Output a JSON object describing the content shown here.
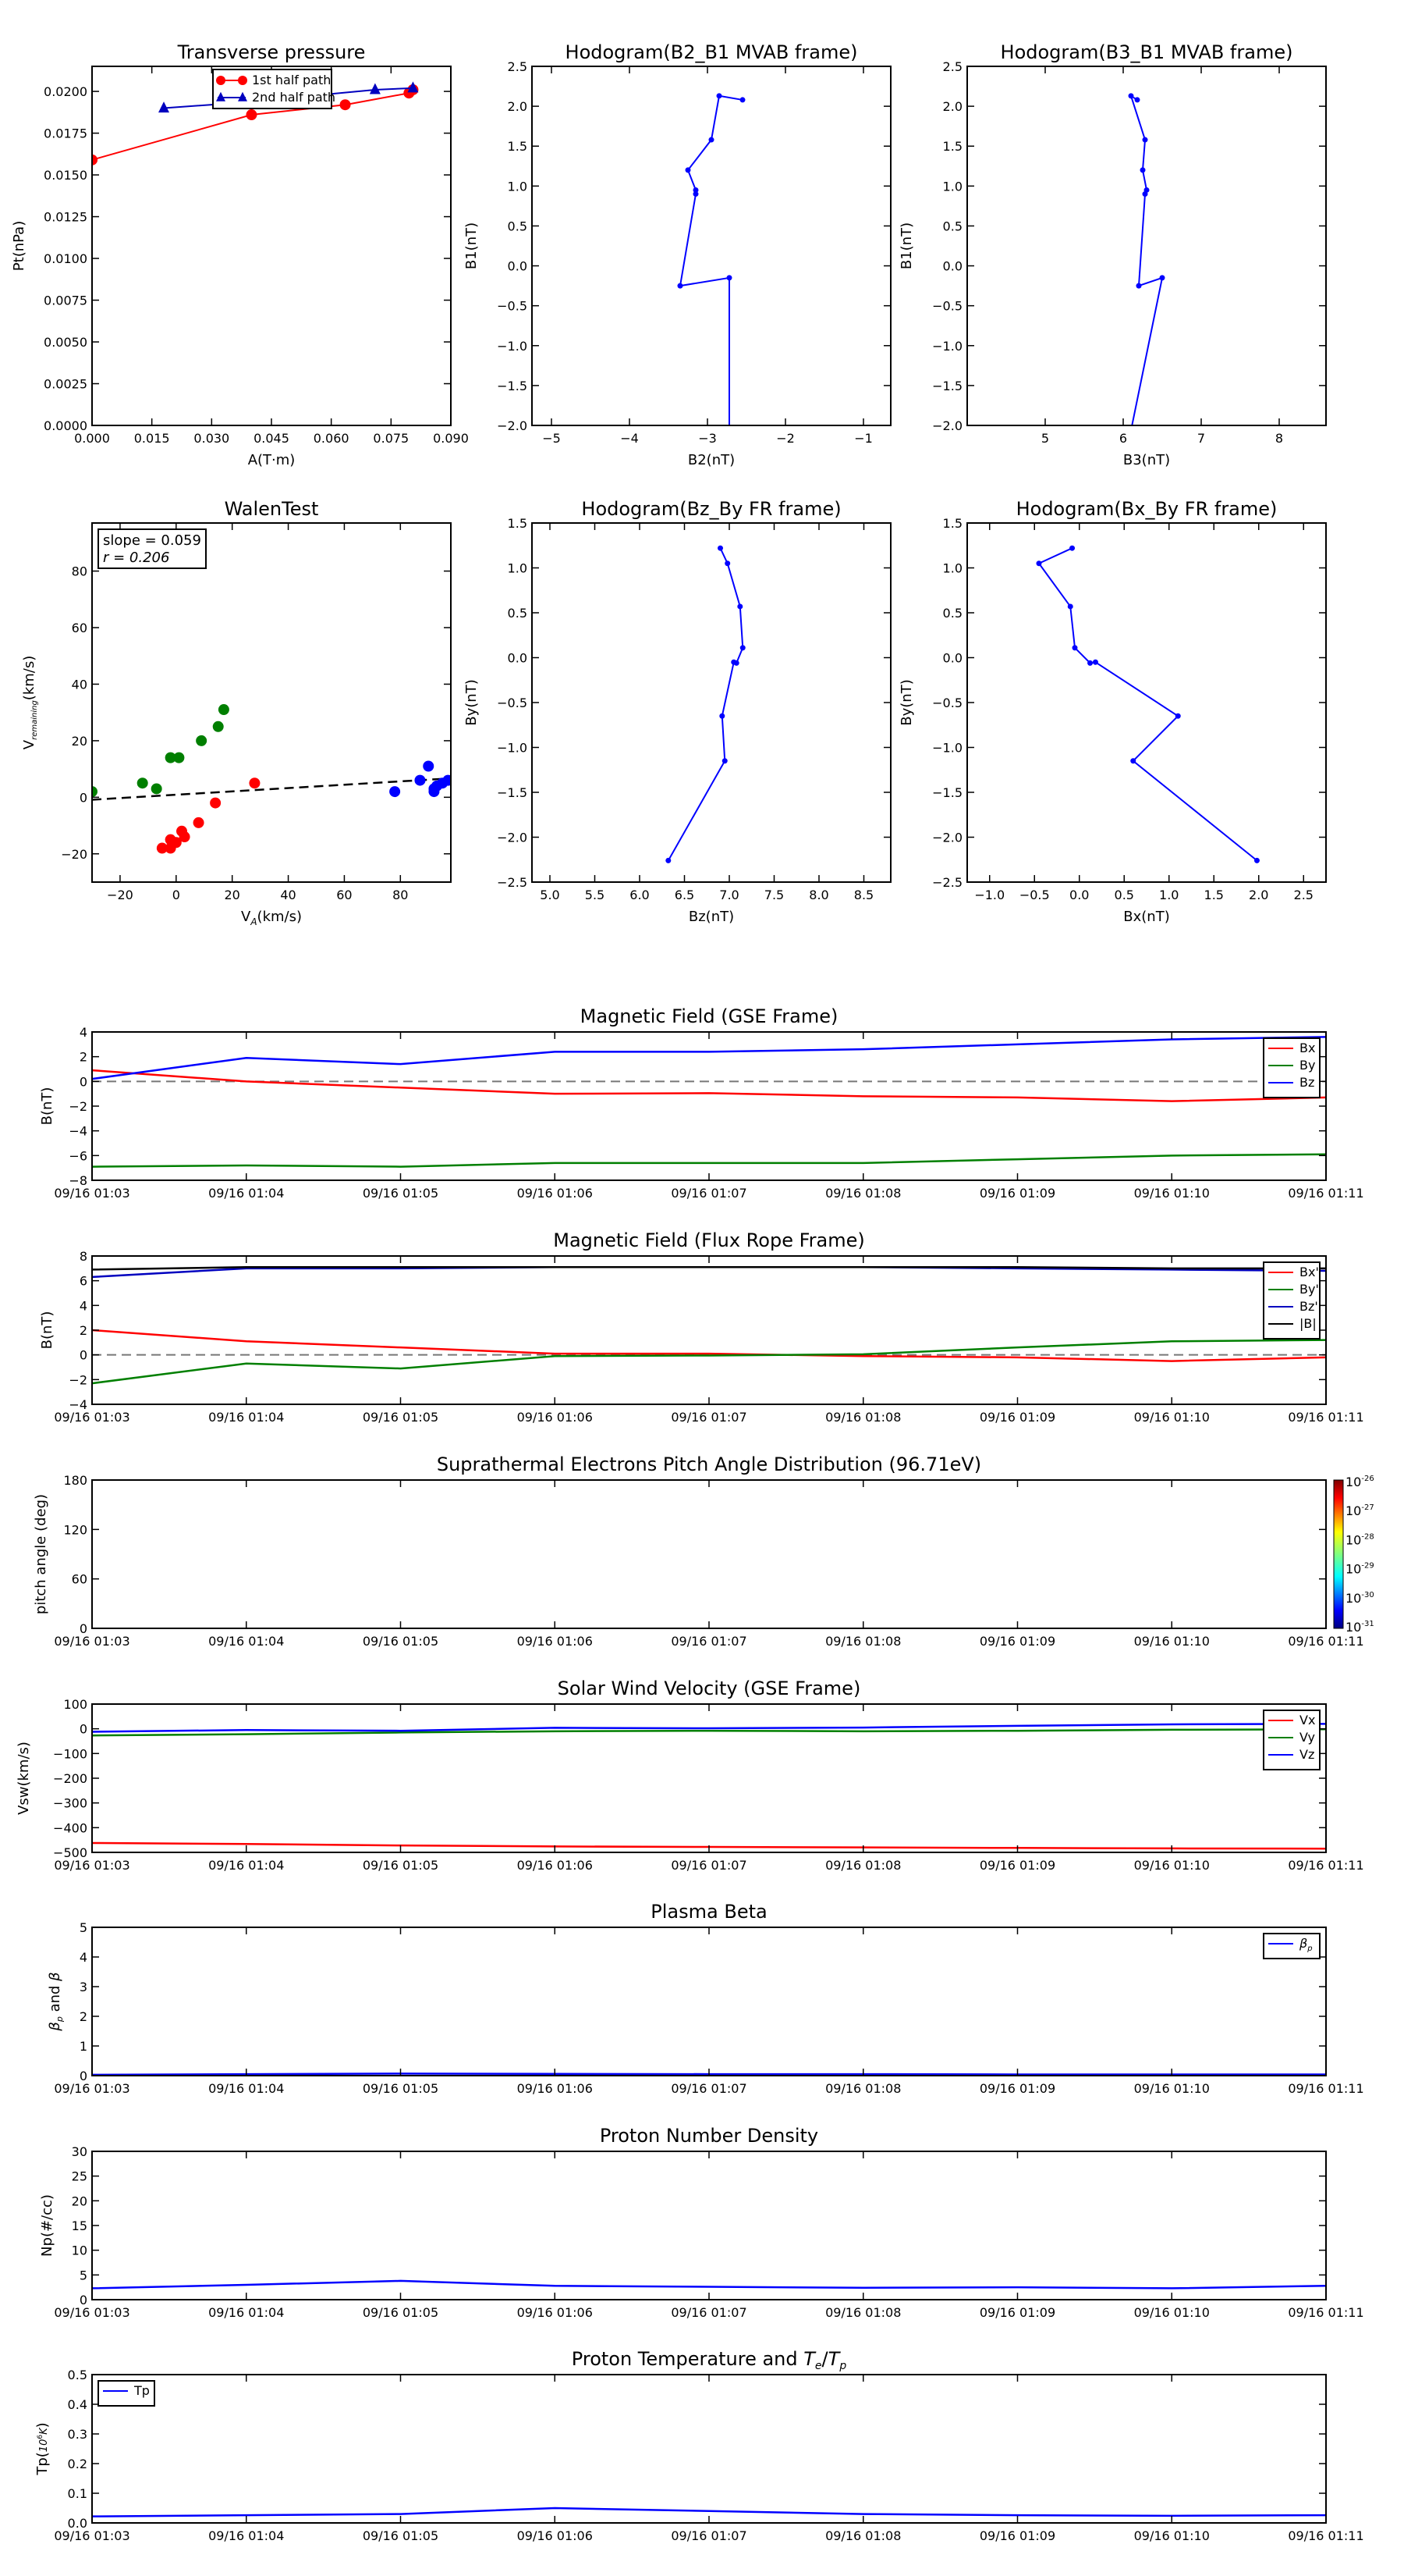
{
  "chart_data": [
    {
      "id": "transverse",
      "type": "scatter",
      "title": "Transverse pressure",
      "xlabel": "A(T·m)",
      "ylabel": "Pt(nPa)",
      "xlim": [
        0,
        0.09
      ],
      "ylim": [
        0,
        0.0215
      ],
      "xticks": [
        0,
        0.015,
        0.03,
        0.045,
        0.06,
        0.075,
        0.09
      ],
      "xtick_labels": [
        "0.000",
        "0.015",
        "0.030",
        "0.045",
        "0.060",
        "0.075",
        "0.090"
      ],
      "yticks": [
        0,
        0.0025,
        0.005,
        0.0075,
        0.01,
        0.0125,
        0.015,
        0.0175,
        0.02
      ],
      "ytick_labels": [
        "0.0000",
        "0.0025",
        "0.0050",
        "0.0075",
        "0.0100",
        "0.0125",
        "0.0150",
        "0.0175",
        "0.0200"
      ],
      "legend": {
        "position": "top-center"
      },
      "series": [
        {
          "name": "1st half path",
          "color": "#ff0000",
          "marker": "circle",
          "x": [
            0.0,
            0.04,
            0.0635,
            0.0795,
            0.0805
          ],
          "y": [
            0.0159,
            0.0186,
            0.0192,
            0.0199,
            0.0201
          ]
        },
        {
          "name": "2nd half path",
          "color": "#0000bf",
          "marker": "triangle",
          "x": [
            0.018,
            0.0355,
            0.071,
            0.0805
          ],
          "y": [
            0.019,
            0.0193,
            0.0201,
            0.0202
          ]
        }
      ]
    },
    {
      "id": "hodo_b2b1",
      "type": "line",
      "title": "Hodogram(B2_B1 MVAB frame)",
      "xlabel": "B2(nT)",
      "ylabel": "B1(nT)",
      "xlim": [
        -5.25,
        -0.65
      ],
      "ylim": [
        -2.0,
        2.5
      ],
      "xticks": [
        -5,
        -4,
        -3,
        -2,
        -1
      ],
      "xtick_labels": [
        "−5",
        "−4",
        "−3",
        "−2",
        "−1"
      ],
      "yticks": [
        -2.0,
        -1.5,
        -1.0,
        -0.5,
        0.0,
        0.5,
        1.0,
        1.5,
        2.0,
        2.5
      ],
      "ytick_labels": [
        "−2.0",
        "−1.5",
        "−1.0",
        "−0.5",
        "0.0",
        "0.5",
        "1.0",
        "1.5",
        "2.0",
        "2.5"
      ],
      "series": [
        {
          "color": "#0000ff",
          "x": [
            -2.55,
            -2.85,
            -2.95,
            -3.25,
            -3.15,
            -3.15,
            -3.35,
            -2.72,
            -2.72
          ],
          "y": [
            2.08,
            2.13,
            1.58,
            1.2,
            0.95,
            0.9,
            -0.25,
            -0.15,
            -2.3
          ]
        }
      ]
    },
    {
      "id": "hodo_b3b1",
      "type": "line",
      "title": "Hodogram(B3_B1 MVAB frame)",
      "xlabel": "B3(nT)",
      "ylabel": "B1(nT)",
      "xlim": [
        4.0,
        8.6
      ],
      "ylim": [
        -2.0,
        2.5
      ],
      "xticks": [
        5,
        6,
        7,
        8
      ],
      "xtick_labels": [
        "5",
        "6",
        "7",
        "8"
      ],
      "yticks": [
        -2.0,
        -1.5,
        -1.0,
        -0.5,
        0.0,
        0.5,
        1.0,
        1.5,
        2.0,
        2.5
      ],
      "ytick_labels": [
        "−2.0",
        "−1.5",
        "−1.0",
        "−0.5",
        "0.0",
        "0.5",
        "1.0",
        "1.5",
        "2.0",
        "2.5"
      ],
      "series": [
        {
          "color": "#0000ff",
          "x": [
            6.18,
            6.1,
            6.28,
            6.25,
            6.3,
            6.28,
            6.2,
            6.5,
            6.05
          ],
          "y": [
            2.08,
            2.13,
            1.58,
            1.2,
            0.95,
            0.9,
            -0.25,
            -0.15,
            -2.3
          ]
        }
      ]
    },
    {
      "id": "walen",
      "type": "scatter",
      "title": "WalenTest",
      "xlabel": "V_A(km/s)",
      "ylabel": "V_remaining(km/s)",
      "xlim": [
        -30,
        98
      ],
      "ylim": [
        -30,
        97
      ],
      "xticks": [
        -20,
        0,
        20,
        40,
        60,
        80
      ],
      "xtick_labels": [
        "−20",
        "0",
        "20",
        "40",
        "60",
        "80"
      ],
      "yticks": [
        -20,
        0,
        20,
        40,
        60,
        80
      ],
      "ytick_labels": [
        "−20",
        "0",
        "20",
        "40",
        "60",
        "80"
      ],
      "annotation": [
        "slope = 0.059",
        "r = 0.206"
      ],
      "fit": {
        "slope": 0.059,
        "intercept": 0.9,
        "style": "dashed"
      },
      "series": [
        {
          "color": "#ff0000",
          "x": [
            -5,
            -2,
            0,
            2,
            3,
            8,
            14,
            28,
            -2
          ],
          "y": [
            -18,
            -15,
            -16,
            -12,
            -14,
            -9,
            -2,
            5,
            -18
          ]
        },
        {
          "color": "#007f00",
          "x": [
            -30,
            -12,
            -7,
            -2,
            1,
            9,
            15,
            17
          ],
          "y": [
            2,
            5,
            3,
            14,
            14,
            20,
            25,
            31
          ]
        },
        {
          "color": "#0000ff",
          "x": [
            78,
            87,
            90,
            92,
            93,
            95,
            97,
            92
          ],
          "y": [
            2,
            6,
            11,
            3,
            4,
            5,
            6,
            2
          ]
        }
      ]
    },
    {
      "id": "hodo_bzby",
      "type": "line",
      "title": "Hodogram(Bz_By FR frame)",
      "xlabel": "Bz(nT)",
      "ylabel": "By(nT)",
      "xlim": [
        4.8,
        8.8
      ],
      "ylim": [
        -2.5,
        1.5
      ],
      "xticks": [
        5.0,
        5.5,
        6.0,
        6.5,
        7.0,
        7.5,
        8.0,
        8.5
      ],
      "xtick_labels": [
        "5.0",
        "5.5",
        "6.0",
        "6.5",
        "7.0",
        "7.5",
        "8.0",
        "8.5"
      ],
      "yticks": [
        -2.5,
        -2.0,
        -1.5,
        -1.0,
        -0.5,
        0.0,
        0.5,
        1.0,
        1.5
      ],
      "ytick_labels": [
        "−2.5",
        "−2.0",
        "−1.5",
        "−1.0",
        "−0.5",
        "0.0",
        "0.5",
        "1.0",
        "1.5"
      ],
      "series": [
        {
          "color": "#0000ff",
          "x": [
            6.9,
            6.98,
            7.12,
            7.15,
            7.08,
            7.05,
            6.92,
            6.95,
            6.32
          ],
          "y": [
            1.22,
            1.05,
            0.57,
            0.11,
            -0.06,
            -0.05,
            -0.65,
            -1.15,
            -2.26
          ]
        }
      ]
    },
    {
      "id": "hodo_bxby",
      "type": "line",
      "title": "Hodogram(Bx_By FR frame)",
      "xlabel": "Bx(nT)",
      "ylabel": "By(nT)",
      "xlim": [
        -1.25,
        2.75
      ],
      "ylim": [
        -2.5,
        1.5
      ],
      "xticks": [
        -1.0,
        -0.5,
        0.0,
        0.5,
        1.0,
        1.5,
        2.0,
        2.5
      ],
      "xtick_labels": [
        "−1.0",
        "−0.5",
        "0.0",
        "0.5",
        "1.0",
        "1.5",
        "2.0",
        "2.5"
      ],
      "yticks": [
        -2.5,
        -2.0,
        -1.5,
        -1.0,
        -0.5,
        0.0,
        0.5,
        1.0,
        1.5
      ],
      "ytick_labels": [
        "−2.5",
        "−2.0",
        "−1.5",
        "−1.0",
        "−0.5",
        "0.0",
        "0.5",
        "1.0",
        "1.5"
      ],
      "series": [
        {
          "color": "#0000ff",
          "x": [
            -0.08,
            -0.45,
            -0.1,
            -0.05,
            0.12,
            0.18,
            1.1,
            0.6,
            1.98
          ],
          "y": [
            1.22,
            1.05,
            0.57,
            0.11,
            -0.06,
            -0.05,
            -0.65,
            -1.15,
            -2.26
          ]
        }
      ]
    },
    {
      "id": "mag_gse",
      "type": "line",
      "title": "Magnetic Field (GSE Frame)",
      "ylabel": "B(nT)",
      "ylim": [
        -8,
        4
      ],
      "yticks": [
        -8,
        -6,
        -4,
        -2,
        0,
        2,
        4
      ],
      "ytick_labels": [
        "−8",
        "−6",
        "−4",
        "−2",
        "0",
        "2",
        "4"
      ],
      "zero_line": true,
      "legend": {
        "position": "top-right"
      },
      "series": [
        {
          "name": "Bx",
          "color": "#ff0000",
          "values": [
            0.9,
            0.0,
            -0.5,
            -1.0,
            -0.95,
            -1.2,
            -1.3,
            -1.6,
            -1.3
          ]
        },
        {
          "name": "By",
          "color": "#007f00",
          "values": [
            -6.9,
            -6.8,
            -6.9,
            -6.6,
            -6.6,
            -6.6,
            -6.3,
            -6.0,
            -5.9
          ]
        },
        {
          "name": "Bz",
          "color": "#0000ff",
          "values": [
            0.2,
            1.9,
            1.4,
            2.4,
            2.4,
            2.6,
            3.0,
            3.4,
            3.6
          ]
        }
      ]
    },
    {
      "id": "mag_fr",
      "type": "line",
      "title": "Magnetic Field (Flux Rope Frame)",
      "ylabel": "B(nT)",
      "ylim": [
        -4,
        8
      ],
      "yticks": [
        -4,
        -2,
        0,
        2,
        4,
        6,
        8
      ],
      "ytick_labels": [
        "−4",
        "−2",
        "0",
        "2",
        "4",
        "6",
        "8"
      ],
      "zero_line": true,
      "legend": {
        "position": "top-right"
      },
      "series": [
        {
          "name": "Bx'",
          "color": "#ff0000",
          "values": [
            2.0,
            1.1,
            0.6,
            0.1,
            0.1,
            -0.1,
            -0.2,
            -0.5,
            -0.2
          ]
        },
        {
          "name": "By'",
          "color": "#007f00",
          "values": [
            -2.3,
            -0.7,
            -1.1,
            -0.1,
            -0.05,
            0.05,
            0.6,
            1.1,
            1.2
          ]
        },
        {
          "name": "Bz'",
          "color": "#0000bf",
          "values": [
            6.3,
            7.0,
            7.0,
            7.1,
            7.1,
            7.1,
            7.0,
            6.9,
            6.8
          ]
        },
        {
          "name": "|B|",
          "color": "#000000",
          "values": [
            6.9,
            7.1,
            7.1,
            7.1,
            7.1,
            7.1,
            7.1,
            7.0,
            7.0
          ]
        }
      ]
    },
    {
      "id": "pad",
      "type": "heatmap",
      "title": "Suprathermal Electrons Pitch Angle Distribution (96.71eV)",
      "ylabel": "pitch angle (deg)",
      "ylim": [
        0,
        180
      ],
      "yticks": [
        0,
        60,
        120,
        180
      ],
      "ytick_labels": [
        "0",
        "60",
        "120",
        "180"
      ],
      "colorbar": {
        "tick_bases": [
          "10",
          "10",
          "10",
          "10",
          "10",
          "10"
        ],
        "tick_exponents": [
          "-26",
          "-27",
          "-28",
          "-29",
          "-30",
          "-31"
        ]
      },
      "series": []
    },
    {
      "id": "vsw",
      "type": "line",
      "title": "Solar Wind Velocity (GSE Frame)",
      "ylabel": "Vsw(km/s)",
      "ylim": [
        -500,
        100
      ],
      "yticks": [
        -500,
        -400,
        -300,
        -200,
        -100,
        0,
        100
      ],
      "ytick_labels": [
        "−500",
        "−400",
        "−300",
        "−200",
        "−100",
        "0",
        "100"
      ],
      "legend": {
        "position": "top-right"
      },
      "series": [
        {
          "name": "Vx",
          "color": "#ff0000",
          "values": [
            -462,
            -466,
            -472,
            -476,
            -478,
            -480,
            -482,
            -484,
            -485
          ]
        },
        {
          "name": "Vy",
          "color": "#007f00",
          "values": [
            -27,
            -22,
            -15,
            -10,
            -8,
            -10,
            -8,
            -4,
            -2
          ]
        },
        {
          "name": "Vz",
          "color": "#0000ff",
          "values": [
            -12,
            -5,
            -8,
            4,
            2,
            5,
            12,
            18,
            20
          ]
        }
      ]
    },
    {
      "id": "beta",
      "type": "line",
      "title": "Plasma Beta",
      "ylabel": "βp and β",
      "ylim": [
        0,
        5
      ],
      "yticks": [
        0,
        1,
        2,
        3,
        4,
        5
      ],
      "ytick_labels": [
        "0",
        "1",
        "2",
        "3",
        "4",
        "5"
      ],
      "legend": {
        "position": "top-right"
      },
      "series": [
        {
          "name": "βp",
          "color": "#0000ff",
          "values": [
            0.03,
            0.05,
            0.07,
            0.06,
            0.05,
            0.05,
            0.04,
            0.04,
            0.04
          ]
        }
      ]
    },
    {
      "id": "np",
      "type": "line",
      "title": "Proton Number Density",
      "ylabel": "Np(#/cc)",
      "ylim": [
        0,
        30
      ],
      "yticks": [
        0,
        5,
        10,
        15,
        20,
        25,
        30
      ],
      "ytick_labels": [
        "0",
        "5",
        "10",
        "15",
        "20",
        "25",
        "30"
      ],
      "series": [
        {
          "color": "#0000ff",
          "values": [
            2.3,
            3.0,
            3.8,
            2.8,
            2.6,
            2.4,
            2.5,
            2.3,
            2.8
          ]
        }
      ]
    },
    {
      "id": "tp",
      "type": "line",
      "title": "Proton Temperature and Te/Tp",
      "ylabel": "Tp(10^6K)",
      "ylim": [
        0,
        0.5
      ],
      "yticks": [
        0,
        0.1,
        0.2,
        0.3,
        0.4,
        0.5
      ],
      "ytick_labels": [
        "0.0",
        "0.1",
        "0.2",
        "0.3",
        "0.4",
        "0.5"
      ],
      "legend": {
        "position": "top-left"
      },
      "series": [
        {
          "name": "Tp",
          "color": "#0000ff",
          "values": [
            0.022,
            0.026,
            0.03,
            0.05,
            0.04,
            0.03,
            0.026,
            0.024,
            0.026
          ]
        }
      ]
    }
  ],
  "time_axis": [
    "09/16 01:03",
    "09/16 01:04",
    "09/16 01:05",
    "09/16 01:06",
    "09/16 01:07",
    "09/16 01:08",
    "09/16 01:09",
    "09/16 01:10",
    "09/16 01:11"
  ]
}
